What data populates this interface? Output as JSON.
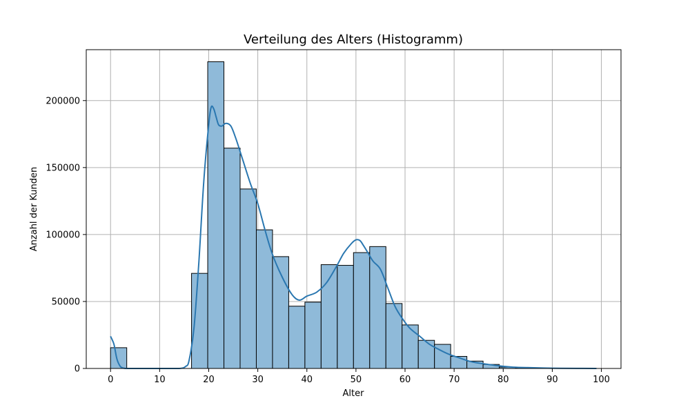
{
  "chart_data": {
    "type": "bar",
    "title": "Verteilung des Alters (Histogramm)",
    "xlabel": "Alter",
    "ylabel": "Anzahl der Kunden",
    "xlim": [
      -4.95,
      104.0
    ],
    "ylim": [
      0,
      238000
    ],
    "xticks": [
      0,
      10,
      20,
      30,
      40,
      50,
      60,
      70,
      80,
      90,
      100
    ],
    "xtick_labels": [
      "0",
      "10",
      "20",
      "30",
      "40",
      "50",
      "60",
      "70",
      "80",
      "90",
      "100"
    ],
    "yticks": [
      0,
      50000,
      100000,
      150000,
      200000
    ],
    "ytick_labels": [
      "0",
      "50000",
      "100000",
      "150000",
      "200000"
    ],
    "grid": true,
    "bin_width": 3.3,
    "bins": [
      {
        "x0": 0.0,
        "count": 15500
      },
      {
        "x0": 16.5,
        "count": 71000
      },
      {
        "x0": 19.8,
        "count": 229000
      },
      {
        "x0": 23.1,
        "count": 164500
      },
      {
        "x0": 26.4,
        "count": 134000
      },
      {
        "x0": 29.7,
        "count": 103500
      },
      {
        "x0": 33.0,
        "count": 83500
      },
      {
        "x0": 36.3,
        "count": 46500
      },
      {
        "x0": 39.6,
        "count": 49500
      },
      {
        "x0": 42.9,
        "count": 77500
      },
      {
        "x0": 46.2,
        "count": 77000
      },
      {
        "x0": 49.5,
        "count": 86500
      },
      {
        "x0": 52.8,
        "count": 91000
      },
      {
        "x0": 56.1,
        "count": 48500
      },
      {
        "x0": 59.4,
        "count": 32500
      },
      {
        "x0": 62.7,
        "count": 21000
      },
      {
        "x0": 66.0,
        "count": 18000
      },
      {
        "x0": 69.3,
        "count": 9000
      },
      {
        "x0": 72.6,
        "count": 5500
      },
      {
        "x0": 75.9,
        "count": 3000
      },
      {
        "x0": 79.2,
        "count": 1000
      },
      {
        "x0": 82.5,
        "count": 500
      },
      {
        "x0": 85.8,
        "count": 200
      },
      {
        "x0": 89.1,
        "count": 100
      },
      {
        "x0": 92.4,
        "count": 50
      },
      {
        "x0": 95.7,
        "count": 20
      }
    ],
    "kde": {
      "x": [
        0,
        0.7,
        1.3,
        2,
        2.7,
        3.5,
        5,
        10,
        14,
        15.3,
        16,
        17,
        18,
        19,
        20,
        20.5,
        21,
        21.5,
        22,
        22.7,
        23.5,
        24.5,
        25.5,
        27,
        28.5,
        30,
        31.5,
        33,
        35,
        37,
        38.5,
        40,
        42,
        44,
        46,
        47.5,
        49,
        50,
        50.8,
        51.5,
        52.5,
        53.5,
        55,
        56.5,
        58,
        59.5,
        61,
        63,
        65,
        67,
        69,
        71,
        73,
        75,
        77,
        79,
        82,
        85,
        90,
        95,
        99
      ],
      "y": [
        24000,
        18000,
        7000,
        1500,
        200,
        0,
        0,
        0,
        0,
        1500,
        6000,
        30000,
        80000,
        140000,
        182000,
        195000,
        194000,
        188000,
        182000,
        181000,
        183000,
        181000,
        172000,
        155000,
        138000,
        123000,
        103000,
        85000,
        68000,
        55000,
        51000,
        54000,
        57000,
        64000,
        76000,
        86000,
        93000,
        96000,
        95500,
        92000,
        86000,
        80000,
        74000,
        60000,
        46000,
        37000,
        30000,
        24000,
        18000,
        14000,
        10500,
        8000,
        5500,
        4000,
        3000,
        2000,
        1000,
        600,
        200,
        60,
        20
      ]
    },
    "colors": {
      "bar_fill": "#8fbad9",
      "bar_edge": "#000000",
      "kde_line": "#2a77b0",
      "grid": "#b0b0b0",
      "axes": "#000000"
    }
  }
}
